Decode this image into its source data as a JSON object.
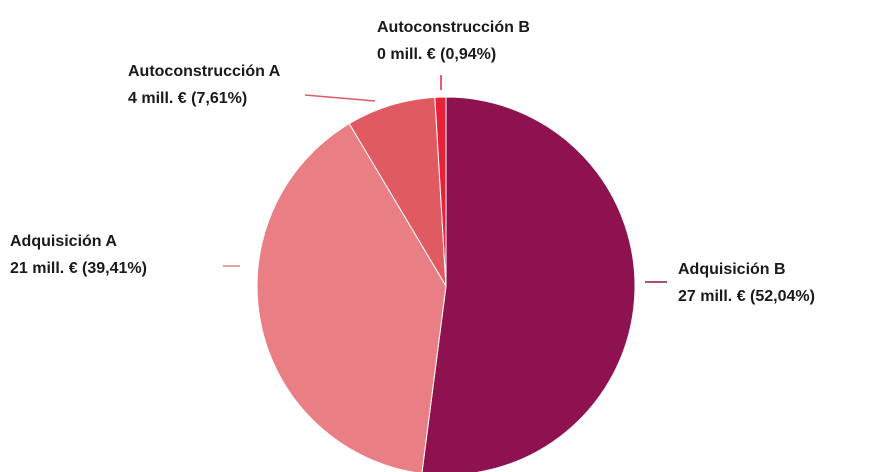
{
  "chart_data": {
    "type": "pie",
    "categories": [
      "Adquisición B",
      "Adquisición A",
      "Autoconstrucción A",
      "Autoconstrucción B"
    ],
    "values": [
      52.04,
      39.41,
      7.61,
      0.94
    ],
    "value_labels": [
      "27 mill. € (52,04%)",
      "21 mill. € (39,41%)",
      "4 mill. € (7,61%)",
      "0 mill. € (0,94%)"
    ],
    "colors": [
      "#8e1150",
      "#e97e84",
      "#e05a62",
      "#e8213a"
    ]
  }
}
